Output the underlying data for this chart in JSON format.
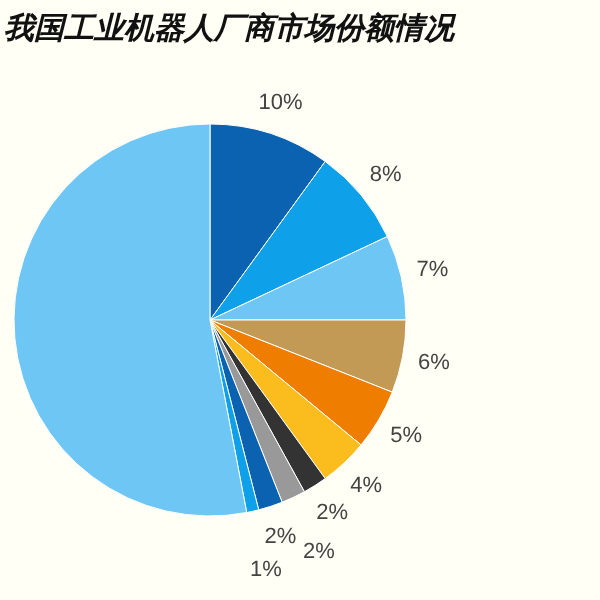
{
  "chart_data": {
    "type": "pie",
    "title": "我国工业机器人厂商市场份额情况",
    "categories": [
      null,
      null,
      null,
      null,
      null,
      null,
      null,
      null,
      null,
      null,
      null
    ],
    "values": [
      10,
      8,
      7,
      6,
      5,
      4,
      2,
      2,
      2,
      1,
      53
    ],
    "colors": [
      "#0a62b0",
      "#0ea0e8",
      "#6ec6f5",
      "#c29a55",
      "#ee7d00",
      "#fbbc1d",
      "#333333",
      "#999999",
      "#0a62b0",
      "#0ea0e8",
      "#6ec6f5"
    ],
    "value_labels": [
      "10%",
      "8%",
      "7%",
      "6%",
      "5%",
      "4%",
      "2%",
      "2%",
      "2%",
      "1%",
      null
    ]
  }
}
